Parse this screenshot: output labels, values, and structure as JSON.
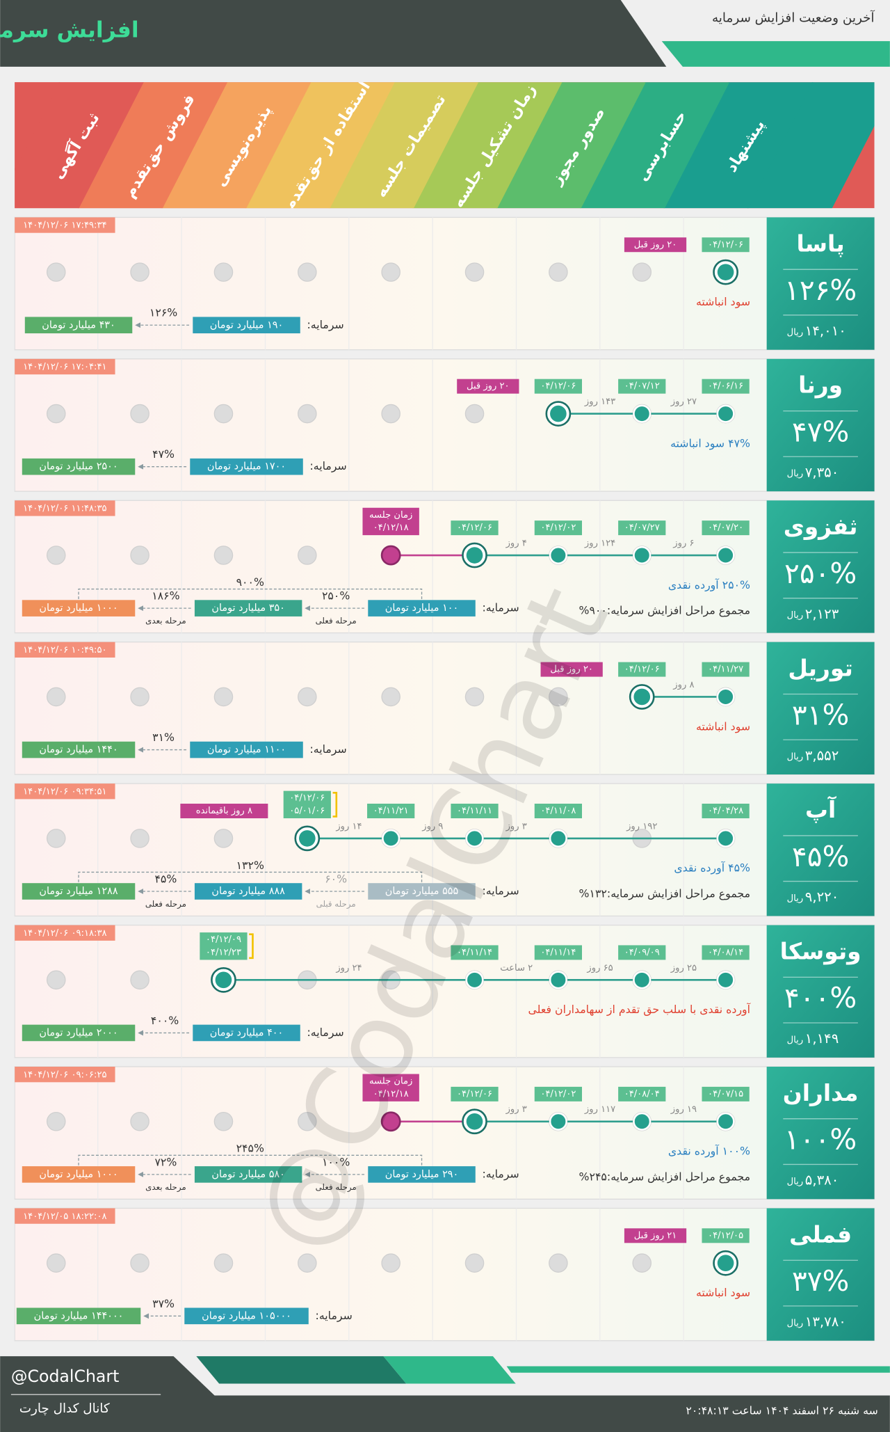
{
  "header": {
    "title": "افزایش سرمایه",
    "subtitle": "آخرین وضعیت افزایش سرمایه"
  },
  "stages": [
    "پیشنهاد",
    "حسابرسی",
    "صدور مجوز",
    "زمان تشکیل جلسه",
    "تصمیمات جلسه",
    "استفاده از حق‌تقدم",
    "پذیره‌نویسی",
    "فروش حق‌تقدم",
    "ثبت آگهی"
  ],
  "price_unit": "ریال",
  "capital_label": "سرمایه:",
  "rows": [
    {
      "name": "پاسا",
      "time": "۱۴۰۴/۱۲/۰۶ ۱۷:۴۹:۳۴",
      "percent": "۱۲۶%",
      "price": "۱۴,۰۱۰",
      "dates": [
        "۰۴/۱۲/۰۶",
        null,
        null,
        null,
        null,
        null,
        null,
        null,
        null
      ],
      "durations": [],
      "badge": "۲۰ روز قبل",
      "note": "سود انباشته",
      "note_color": "#e0402f",
      "steps": [
        {
          "amount": "۱۹۰ میلیارد تومان",
          "color": "#2f9fb5"
        },
        {
          "amount": "۴۳۰ میلیارد تومان",
          "color": "#5aae6a"
        }
      ],
      "changes": [
        {
          "pct": "۱۲۶%"
        }
      ]
    },
    {
      "name": "ورنا",
      "time": "۱۴۰۴/۱۲/۰۶ ۱۷:۰۴:۴۱",
      "percent": "۴۷%",
      "price": "۷,۳۵۰",
      "dates": [
        "۰۴/۰۶/۱۶",
        "۰۴/۰۷/۱۲",
        "۰۴/۱۲/۰۶",
        null,
        null,
        null,
        null,
        null,
        null
      ],
      "durations": [
        "۲۷ روز",
        "۱۴۳ روز"
      ],
      "badge": "۲۰ روز قبل",
      "note": "۴۷% سود انباشته",
      "note_color": "#2a7fc0",
      "steps": [
        {
          "amount": "۱۷۰۰ میلیارد تومان",
          "color": "#2f9fb5"
        },
        {
          "amount": "۲۵۰۰ میلیارد تومان",
          "color": "#5aae6a"
        }
      ],
      "changes": [
        {
          "pct": "۴۷%"
        }
      ]
    },
    {
      "name": "ثفزوی",
      "time": "۱۴۰۴/۱۲/۰۶ ۱۱:۴۸:۳۵",
      "percent": "۲۵۰%",
      "price": "۲,۱۲۳",
      "dates": [
        "۰۴/۰۷/۲۰",
        "۰۴/۰۷/۲۷",
        "۰۴/۱۲/۰۲",
        "۰۴/۱۲/۰۶",
        null,
        null,
        null,
        null,
        null
      ],
      "durations": [
        "۶ روز",
        "۱۲۴ روز",
        "۴ روز"
      ],
      "meeting": {
        "label": "زمان جلسه",
        "date": "۰۴/۱۲/۱۸"
      },
      "note": "۲۵۰% آورده نقدی",
      "note_color": "#2a7fc0",
      "total": "مجموع مراحل افزایش سرمایه:۹۰۰%",
      "steps": [
        {
          "amount": "۱۰۰ میلیارد تومان",
          "color": "#2f9fb5"
        },
        {
          "amount": "۳۵۰ میلیارد تومان",
          "color": "#3aa58c"
        },
        {
          "amount": "۱۰۰۰ میلیارد تومان",
          "color": "#f0905a"
        }
      ],
      "changes": [
        {
          "pct": "۲۵۰%",
          "stage": "مرحله فعلی"
        },
        {
          "pct": "۱۸۶%",
          "stage": "مرحله بعدی"
        }
      ],
      "span": "۹۰۰%"
    },
    {
      "name": "توریل",
      "time": "۱۴۰۴/۱۲/۰۶ ۱۰:۴۹:۵۰",
      "percent": "۳۱%",
      "price": "۳,۵۵۲",
      "dates": [
        "۰۴/۱۱/۲۷",
        "۰۴/۱۲/۰۶",
        null,
        null,
        null,
        null,
        null,
        null,
        null
      ],
      "durations": [
        "۸ روز"
      ],
      "badge": "۲۰ روز قبل",
      "note": "سود انباشته",
      "note_color": "#e0402f",
      "steps": [
        {
          "amount": "۱۱۰۰ میلیارد تومان",
          "color": "#2f9fb5"
        },
        {
          "amount": "۱۴۴۰ میلیارد تومان",
          "color": "#5aae6a"
        }
      ],
      "changes": [
        {
          "pct": "۳۱%"
        }
      ]
    },
    {
      "name": "آپ",
      "time": "۱۴۰۴/۱۲/۰۶ ۰۹:۳۴:۵۱",
      "percent": "۴۵%",
      "price": "۹,۲۲۰",
      "dates": [
        "۰۴/۰۴/۲۸",
        null,
        "۰۴/۱۱/۰۸",
        "۰۴/۱۱/۱۱",
        "۰۴/۱۱/۲۱",
        [
          "۰۴/۱۲/۰۶",
          "۰۵/۰۱/۰۶"
        ],
        null,
        null,
        null
      ],
      "durations": [
        "۱۹۲ روز",
        "۳ روز",
        "۹ روز",
        "۱۴ روز"
      ],
      "badge": "۸ روز باقیمانده",
      "note": "۴۵% آورده نقدی",
      "note_color": "#2a7fc0",
      "total": "مجموع مراحل افزایش سرمایه:۱۳۲%",
      "steps": [
        {
          "amount": "۵۵۵ میلیارد تومان",
          "color": "#a9bcc4"
        },
        {
          "amount": "۸۸۸ میلیارد تومان",
          "color": "#2f9fb5"
        },
        {
          "amount": "۱۲۸۸ میلیارد تومان",
          "color": "#5aae6a"
        }
      ],
      "changes": [
        {
          "pct": "۶۰%",
          "stage": "مرحله قبلی",
          "color": "#a0a0a0"
        },
        {
          "pct": "۴۵%",
          "stage": "مرحله فعلی"
        }
      ],
      "span": "۱۳۲%"
    },
    {
      "name": "وتوسکا",
      "time": "۱۴۰۴/۱۲/۰۶ ۰۹:۱۸:۳۸",
      "percent": "۴۰۰%",
      "price": "۱,۱۴۹",
      "dates": [
        "۰۴/۰۸/۱۴",
        "۰۴/۰۹/۰۹",
        "۰۴/۱۱/۱۴",
        "۰۴/۱۱/۱۴",
        null,
        null,
        [
          "۰۴/۱۲/۰۹",
          "۰۴/۱۲/۲۳"
        ],
        null,
        null
      ],
      "durations": [
        "۲۵ روز",
        "۶۵ روز",
        "۲ ساعت",
        "۲۴ روز"
      ],
      "note": "آورده نقدی با سلب حق تقدم از سهامداران فعلی",
      "note_color": "#e0402f",
      "steps": [
        {
          "amount": "۴۰۰ میلیارد تومان",
          "color": "#2f9fb5"
        },
        {
          "amount": "۲۰۰۰ میلیارد تومان",
          "color": "#5aae6a"
        }
      ],
      "changes": [
        {
          "pct": "۴۰۰%"
        }
      ]
    },
    {
      "name": "مداران",
      "time": "۱۴۰۴/۱۲/۰۶ ۰۹:۰۶:۲۵",
      "percent": "۱۰۰%",
      "price": "۵,۳۸۰",
      "dates": [
        "۰۴/۰۷/۱۵",
        "۰۴/۰۸/۰۴",
        "۰۴/۱۲/۰۲",
        "۰۴/۱۲/۰۶",
        null,
        null,
        null,
        null,
        null
      ],
      "durations": [
        "۱۹ روز",
        "۱۱۷ روز",
        "۳ روز"
      ],
      "meeting": {
        "label": "زمان جلسه",
        "date": "۰۴/۱۲/۱۸"
      },
      "note": "۱۰۰% آورده نقدی",
      "note_color": "#2a7fc0",
      "total": "مجموع مراحل افزایش سرمایه:۲۴۵%",
      "steps": [
        {
          "amount": "۲۹۰ میلیارد تومان",
          "color": "#2f9fb5"
        },
        {
          "amount": "۵۸۰ میلیارد تومان",
          "color": "#3aa58c"
        },
        {
          "amount": "۱۰۰۰ میلیارد تومان",
          "color": "#f0905a"
        }
      ],
      "changes": [
        {
          "pct": "۱۰۰%",
          "stage": "مرحله فعلی"
        },
        {
          "pct": "۷۲%",
          "stage": "مرحله بعدی"
        }
      ],
      "span": "۲۴۵%"
    },
    {
      "name": "فملی",
      "time": "۱۴۰۴/۱۲/۰۵ ۱۸:۲۲:۰۸",
      "percent": "۳۷%",
      "price": "۱۳,۷۸۰",
      "dates": [
        "۰۴/۱۲/۰۵",
        null,
        null,
        null,
        null,
        null,
        null,
        null,
        null
      ],
      "durations": [],
      "badge": "۲۱ روز قبل",
      "note": "سود انباشته",
      "note_color": "#e0402f",
      "steps": [
        {
          "amount": "۱۰۵۰۰۰ میلیارد تومان",
          "color": "#2f9fb5"
        },
        {
          "amount": "۱۴۴۰۰۰ میلیارد تومان",
          "color": "#5aae6a"
        }
      ],
      "changes": [
        {
          "pct": "۳۷%"
        }
      ]
    }
  ],
  "watermark": "@CodalChart",
  "footer": {
    "handle": "@CodalChart",
    "channel": "کانال کدال چارت",
    "datetime": "سه شنبه ۲۶ اسفند ۱۴۰۴ ساعت ۲۰:۴۸:۱۳"
  }
}
